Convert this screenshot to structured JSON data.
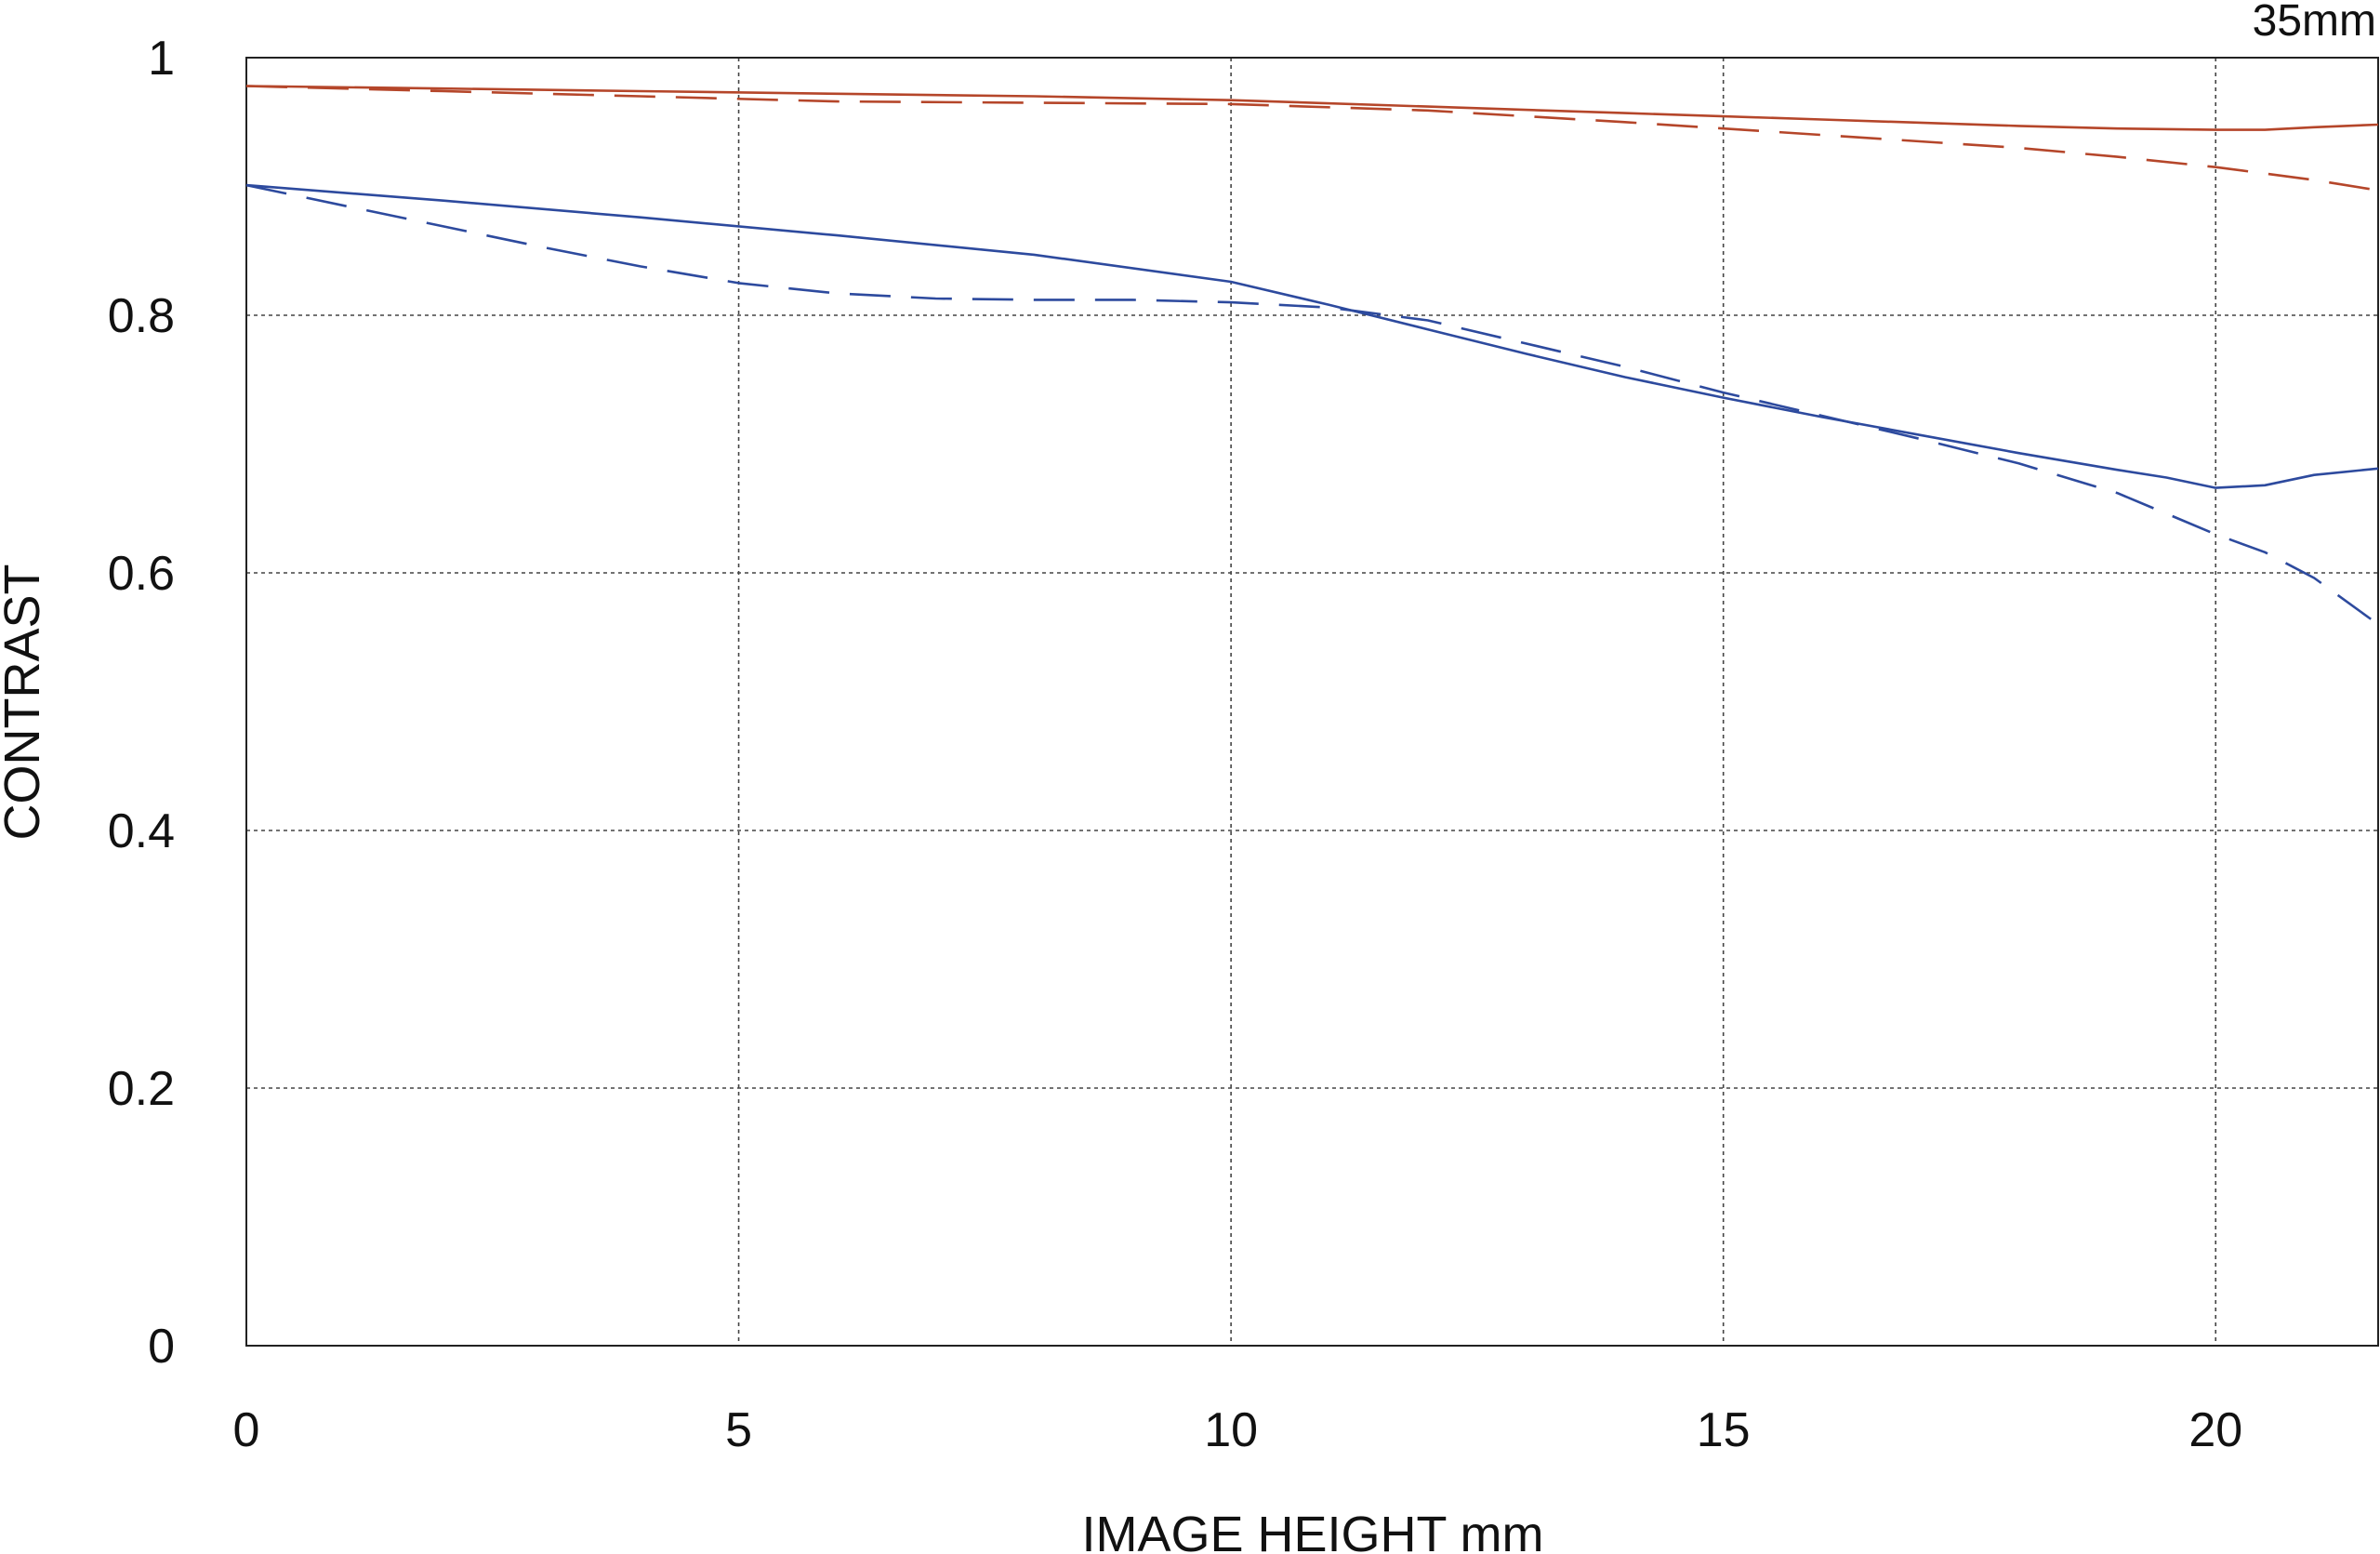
{
  "chart_data": {
    "type": "line",
    "annotation": "35mm",
    "xlabel": "IMAGE HEIGHT  mm",
    "ylabel": "CONTRAST",
    "xlim": [
      0,
      21.65
    ],
    "ylim": [
      0,
      1
    ],
    "x_ticks": [
      0,
      5,
      10,
      15,
      20
    ],
    "x_tick_labels": [
      "0",
      "5",
      "10",
      "15",
      "20"
    ],
    "y_ticks": [
      0,
      0.2,
      0.4,
      0.6,
      0.8,
      1
    ],
    "y_tick_labels": [
      "0",
      "0.2",
      "0.4",
      "0.6",
      "0.8",
      "1"
    ],
    "grid": true,
    "series": [
      {
        "color": "#b5462a",
        "style": "solid",
        "x": [
          0,
          2,
          4,
          6,
          8,
          10,
          12,
          14,
          16,
          18,
          19,
          20,
          20.5,
          21,
          21.65
        ],
        "y": [
          0.978,
          0.976,
          0.974,
          0.972,
          0.97,
          0.967,
          0.962,
          0.957,
          0.952,
          0.947,
          0.945,
          0.944,
          0.944,
          0.946,
          0.948
        ]
      },
      {
        "color": "#b5462a",
        "style": "dashed",
        "x": [
          0,
          2,
          4,
          6,
          8,
          10,
          12,
          14,
          16,
          18,
          19,
          20,
          20.5,
          21,
          21.65
        ],
        "y": [
          0.978,
          0.974,
          0.97,
          0.966,
          0.965,
          0.964,
          0.959,
          0.95,
          0.94,
          0.93,
          0.923,
          0.915,
          0.91,
          0.905,
          0.897
        ]
      },
      {
        "color": "#2d4a9e",
        "style": "solid",
        "x": [
          0,
          2,
          4,
          6,
          8,
          10,
          11,
          12,
          13,
          14,
          15,
          16,
          17,
          18,
          19,
          19.5,
          20,
          20.5,
          21,
          21.65
        ],
        "y": [
          0.901,
          0.889,
          0.876,
          0.862,
          0.847,
          0.826,
          0.808,
          0.789,
          0.77,
          0.752,
          0.736,
          0.721,
          0.707,
          0.693,
          0.68,
          0.674,
          0.666,
          0.668,
          0.676,
          0.681
        ]
      },
      {
        "color": "#2d4a9e",
        "style": "dashed",
        "x": [
          0,
          1,
          2,
          3,
          4,
          5,
          6,
          7,
          8,
          9,
          10,
          11,
          12,
          13,
          14,
          15,
          16,
          17,
          18,
          19,
          20,
          20.5,
          21,
          21.65
        ],
        "y": [
          0.901,
          0.885,
          0.869,
          0.853,
          0.838,
          0.825,
          0.817,
          0.813,
          0.812,
          0.812,
          0.81,
          0.806,
          0.796,
          0.778,
          0.76,
          0.74,
          0.722,
          0.704,
          0.685,
          0.662,
          0.63,
          0.616,
          0.596,
          0.56
        ]
      }
    ]
  }
}
